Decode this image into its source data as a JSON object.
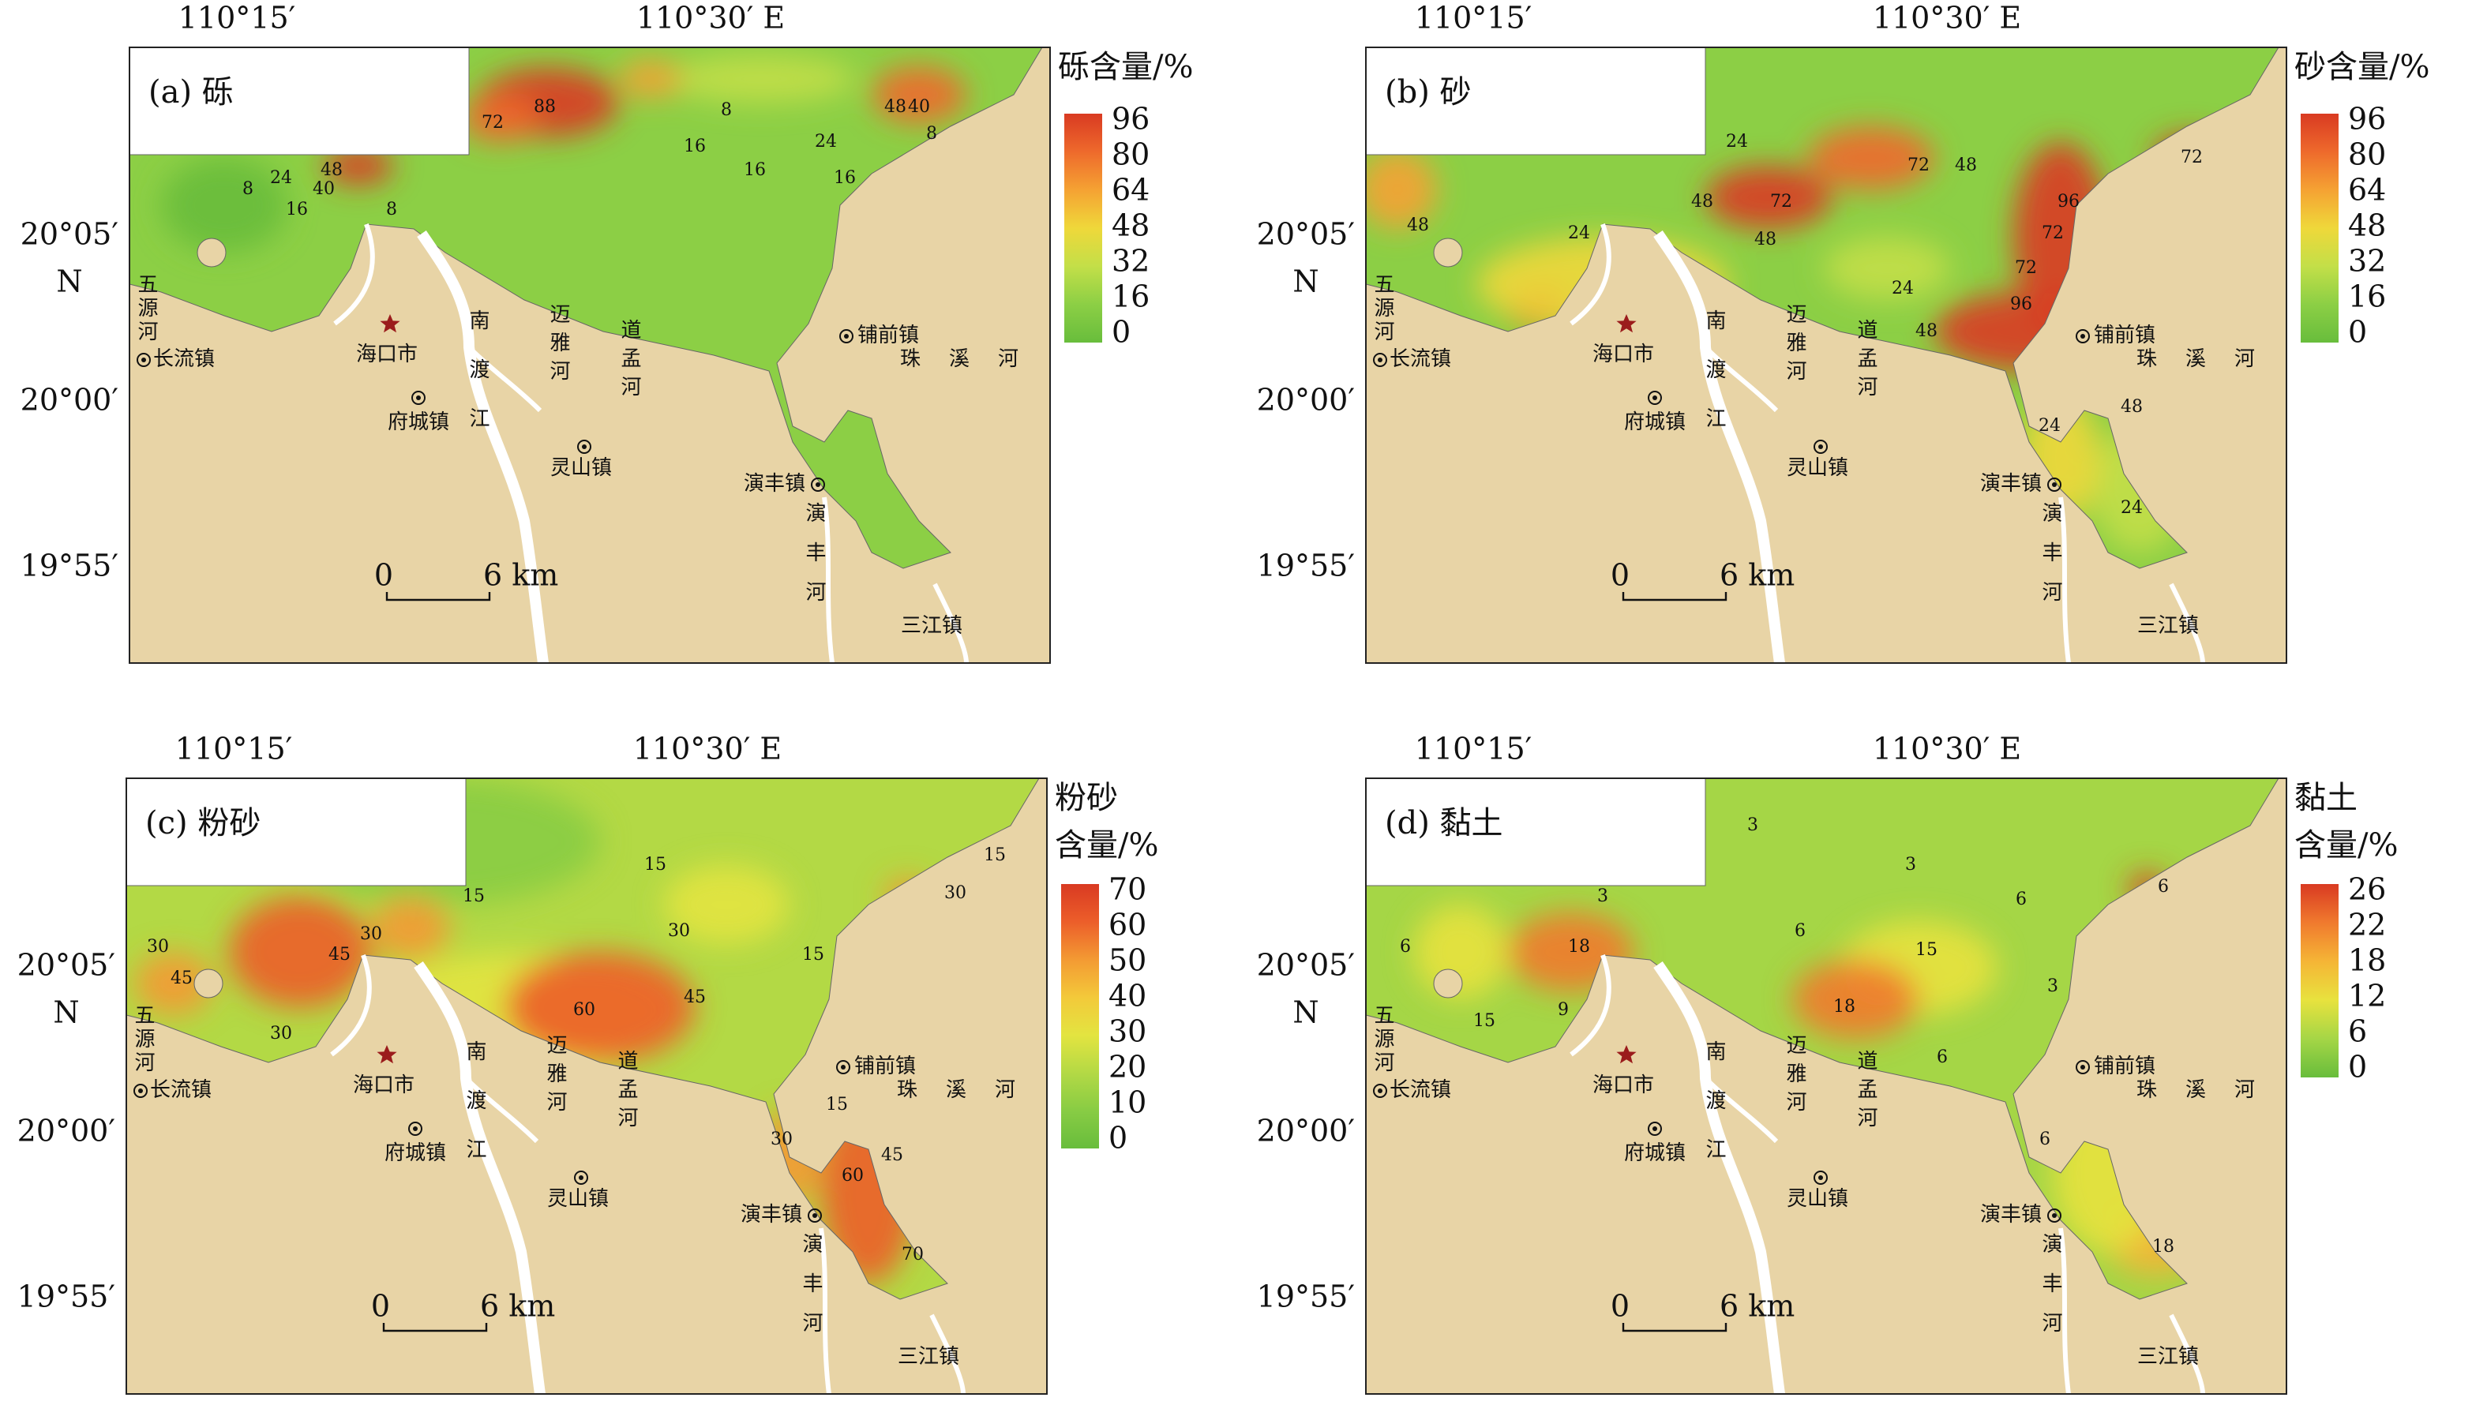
{
  "longitude_labels": [
    "110°15′",
    "110°30′ E"
  ],
  "latitude_labels": [
    "20°05′",
    "N",
    "20°00′",
    "19°55′"
  ],
  "places": {
    "wuyuan": "五源河",
    "changliu": "长流镇",
    "haikou": "海口市",
    "fucheng": "府城镇",
    "nandu": "南渡江",
    "maiya": "迈雅河",
    "daomeng": "道孟河",
    "puqian": "铺前镇",
    "zhuxi": "珠溪河",
    "lingshan": "灵山镇",
    "yanfeng_town": "演丰镇",
    "yanfeng_river": "演丰河",
    "sanjiang": "三江镇"
  },
  "scale_bar_labels": [
    "0",
    "6 km"
  ],
  "panels": [
    {
      "label": "(a) 砾",
      "legend_title": [
        "砾含量/%"
      ],
      "legend_ticks": [
        96,
        80,
        64,
        48,
        32,
        16,
        0
      ],
      "legend_colors": [
        "#d93a22",
        "#ee6a2c",
        "#f5a233",
        "#efd83a",
        "#c3df48",
        "#8ccf45",
        "#68bd3c"
      ],
      "contour_labels": [
        88,
        72,
        48,
        40,
        24,
        16,
        8,
        8,
        16,
        16,
        24,
        16,
        48,
        40,
        8,
        8
      ]
    },
    {
      "label": "(b) 砂",
      "legend_title": [
        "砂含量/%"
      ],
      "legend_ticks": [
        96,
        80,
        64,
        48,
        32,
        16,
        0
      ],
      "legend_colors": [
        "#d93a22",
        "#ee6a2c",
        "#f5a233",
        "#efd83a",
        "#c3df48",
        "#8ccf45",
        "#68bd3c"
      ],
      "contour_labels": [
        48,
        24,
        48,
        72,
        48,
        24,
        48,
        72,
        48,
        96,
        72,
        72,
        96,
        24,
        48,
        24,
        72,
        24
      ]
    },
    {
      "label": "(c) 粉砂",
      "legend_title": [
        "粉砂",
        "含量/%"
      ],
      "legend_ticks": [
        70,
        60,
        50,
        40,
        30,
        20,
        10,
        0
      ],
      "legend_colors": [
        "#d93a22",
        "#ec5e2a",
        "#f39a33",
        "#f3c93a",
        "#e3e440",
        "#b3d945",
        "#88cc44",
        "#68bd3c"
      ],
      "contour_labels": [
        30,
        45,
        30,
        45,
        30,
        15,
        60,
        45,
        30,
        15,
        15,
        15,
        30,
        45,
        60,
        70,
        30,
        15
      ]
    },
    {
      "label": "(d) 黏土",
      "legend_title": [
        "黏土",
        "含量/%"
      ],
      "legend_ticks": [
        26,
        22,
        18,
        12,
        6,
        0
      ],
      "legend_colors": [
        "#d93a22",
        "#f07a2e",
        "#f5b536",
        "#e8e23e",
        "#a5d646",
        "#68bd3c"
      ],
      "contour_labels": [
        6,
        3,
        18,
        9,
        15,
        3,
        3,
        6,
        6,
        15,
        18,
        6,
        3,
        6,
        18,
        6
      ]
    }
  ]
}
